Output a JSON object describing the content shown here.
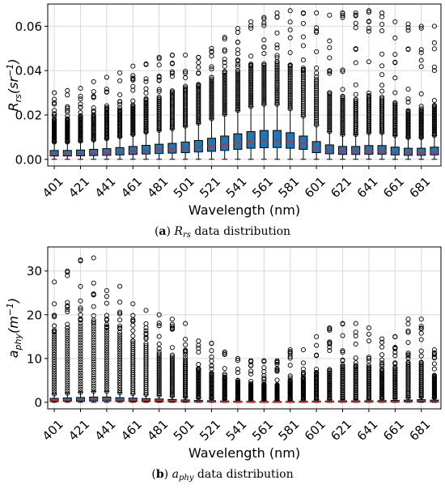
{
  "chart_data": [
    {
      "type": "box",
      "caption_tag": "(a)",
      "caption_var": "R",
      "caption_sub": "rs",
      "caption_text": "data distribution",
      "xlabel": "Wavelength (nm)",
      "ylabel_main": "R",
      "ylabel_sub": "rs",
      "ylabel_unit_open": "(sr",
      "ylabel_unit_sup": "−1",
      "ylabel_unit_close": ")",
      "ylim": [
        -0.003,
        0.07
      ],
      "yticks": [
        0.0,
        0.02,
        0.04,
        0.06
      ],
      "ytick_labels": [
        "0.00",
        "0.02",
        "0.04",
        "0.06"
      ],
      "grid": true,
      "box_color": "#1f77b4",
      "median_color": "#d62728",
      "x": [
        401,
        411,
        421,
        431,
        441,
        451,
        461,
        471,
        481,
        491,
        501,
        511,
        521,
        531,
        541,
        551,
        561,
        571,
        581,
        591,
        601,
        611,
        621,
        631,
        641,
        651,
        661,
        671,
        681,
        691
      ],
      "xtick_labels": [
        "401",
        "421",
        "441",
        "461",
        "481",
        "501",
        "521",
        "541",
        "561",
        "581",
        "601",
        "621",
        "641",
        "661",
        "681"
      ],
      "q1": [
        0.0015,
        0.0015,
        0.0016,
        0.0017,
        0.0018,
        0.002,
        0.0022,
        0.0024,
        0.0026,
        0.0028,
        0.003,
        0.0033,
        0.0036,
        0.004,
        0.0045,
        0.005,
        0.0052,
        0.0053,
        0.005,
        0.0045,
        0.003,
        0.0025,
        0.0022,
        0.0022,
        0.0023,
        0.0023,
        0.002,
        0.0018,
        0.0018,
        0.002
      ],
      "median": [
        0.0025,
        0.0025,
        0.0026,
        0.0028,
        0.003,
        0.0033,
        0.0036,
        0.004,
        0.0043,
        0.0046,
        0.005,
        0.0055,
        0.006,
        0.0068,
        0.0075,
        0.0082,
        0.0085,
        0.0085,
        0.008,
        0.0072,
        0.005,
        0.004,
        0.0036,
        0.0036,
        0.0038,
        0.0038,
        0.0033,
        0.003,
        0.003,
        0.0032
      ],
      "q3": [
        0.004,
        0.004,
        0.0042,
        0.0045,
        0.0048,
        0.0053,
        0.0058,
        0.0063,
        0.0068,
        0.0072,
        0.0078,
        0.0085,
        0.0095,
        0.0105,
        0.0115,
        0.0125,
        0.013,
        0.013,
        0.012,
        0.0105,
        0.008,
        0.0065,
        0.0058,
        0.0058,
        0.0062,
        0.0062,
        0.0055,
        0.005,
        0.005,
        0.0055
      ],
      "whisker_low": [
        0.0,
        0.0,
        0.0,
        0.0,
        0.0,
        0.0,
        0.0,
        0.0,
        0.0,
        0.0,
        0.0,
        0.0,
        0.0,
        0.0,
        0.0,
        0.0,
        0.0,
        0.0,
        0.0,
        0.0,
        0.0,
        0.0,
        0.0,
        0.0,
        0.0,
        0.0,
        0.0,
        0.0,
        0.0,
        0.0
      ],
      "whisker_high": [
        0.0078,
        0.0078,
        0.0082,
        0.0087,
        0.0093,
        0.0102,
        0.0112,
        0.0122,
        0.0131,
        0.0138,
        0.015,
        0.0163,
        0.0183,
        0.0203,
        0.022,
        0.0238,
        0.0248,
        0.0248,
        0.0228,
        0.0195,
        0.0155,
        0.0125,
        0.0112,
        0.0112,
        0.012,
        0.012,
        0.0108,
        0.0098,
        0.0098,
        0.0108
      ],
      "outlier_max": [
        0.03,
        0.031,
        0.032,
        0.035,
        0.037,
        0.039,
        0.042,
        0.043,
        0.046,
        0.047,
        0.047,
        0.046,
        0.05,
        0.055,
        0.059,
        0.062,
        0.064,
        0.066,
        0.067,
        0.066,
        0.066,
        0.065,
        0.066,
        0.066,
        0.067,
        0.066,
        0.062,
        0.061,
        0.06,
        0.06
      ],
      "outlier_sparse_from": [
        0.018,
        0.018,
        0.019,
        0.02,
        0.021,
        0.022,
        0.024,
        0.026,
        0.028,
        0.03,
        0.031,
        0.033,
        0.036,
        0.038,
        0.04,
        0.042,
        0.043,
        0.044,
        0.042,
        0.04,
        0.036,
        0.03,
        0.028,
        0.027,
        0.028,
        0.028,
        0.025,
        0.022,
        0.022,
        0.024
      ]
    },
    {
      "type": "box",
      "caption_tag": "(b)",
      "caption_var": "a",
      "caption_sub": "phy",
      "caption_text": "data distribution",
      "xlabel": "Wavelength (nm)",
      "ylabel_main": "a",
      "ylabel_sub": "phy",
      "ylabel_unit_open": "(m",
      "ylabel_unit_sup": "−1",
      "ylabel_unit_close": ")",
      "ylim": [
        -1.5,
        35.5
      ],
      "yticks": [
        0,
        10,
        20,
        30
      ],
      "ytick_labels": [
        "0",
        "10",
        "20",
        "30"
      ],
      "grid": true,
      "box_color": "#1f77b4",
      "median_color": "#d62728",
      "x": [
        401,
        411,
        421,
        431,
        441,
        451,
        461,
        471,
        481,
        491,
        501,
        511,
        521,
        531,
        541,
        551,
        561,
        571,
        581,
        591,
        601,
        611,
        621,
        631,
        641,
        651,
        661,
        671,
        681,
        691
      ],
      "xtick_labels": [
        "401",
        "421",
        "441",
        "461",
        "481",
        "501",
        "521",
        "541",
        "561",
        "581",
        "601",
        "621",
        "641",
        "661",
        "681"
      ],
      "q1": [
        0.2,
        0.25,
        0.25,
        0.3,
        0.3,
        0.25,
        0.2,
        0.2,
        0.15,
        0.15,
        0.12,
        0.1,
        0.08,
        0.06,
        0.05,
        0.05,
        0.04,
        0.04,
        0.04,
        0.05,
        0.05,
        0.06,
        0.06,
        0.06,
        0.06,
        0.07,
        0.08,
        0.1,
        0.12,
        0.1
      ],
      "median": [
        0.45,
        0.55,
        0.6,
        0.65,
        0.65,
        0.55,
        0.5,
        0.45,
        0.4,
        0.35,
        0.3,
        0.25,
        0.2,
        0.15,
        0.12,
        0.1,
        0.1,
        0.1,
        0.1,
        0.12,
        0.13,
        0.14,
        0.15,
        0.15,
        0.16,
        0.18,
        0.2,
        0.25,
        0.3,
        0.25
      ],
      "q3": [
        0.9,
        1.0,
        1.1,
        1.2,
        1.2,
        1.05,
        0.95,
        0.85,
        0.75,
        0.65,
        0.55,
        0.45,
        0.38,
        0.3,
        0.25,
        0.22,
        0.2,
        0.2,
        0.22,
        0.25,
        0.28,
        0.3,
        0.32,
        0.33,
        0.35,
        0.38,
        0.42,
        0.5,
        0.6,
        0.5
      ],
      "whisker_low": [
        0,
        0,
        0,
        0,
        0,
        0,
        0,
        0,
        0,
        0,
        0,
        0,
        0,
        0,
        0,
        0,
        0,
        0,
        0,
        0,
        0,
        0,
        0,
        0,
        0,
        0,
        0,
        0,
        0,
        0
      ],
      "whisker_high": [
        1.9,
        2.1,
        2.3,
        2.5,
        2.5,
        2.2,
        2.0,
        1.8,
        1.6,
        1.4,
        1.2,
        1.0,
        0.85,
        0.7,
        0.6,
        0.5,
        0.45,
        0.45,
        0.5,
        0.55,
        0.6,
        0.65,
        0.7,
        0.72,
        0.75,
        0.8,
        0.9,
        1.05,
        1.2,
        1.05
      ],
      "outlier_max": [
        27.5,
        30.0,
        32.5,
        33.0,
        25.5,
        26.5,
        22.5,
        21.0,
        20.0,
        19.0,
        18.0,
        14.0,
        13.5,
        11.5,
        10.0,
        9.5,
        9.5,
        9.5,
        12.0,
        12.0,
        15.0,
        17.0,
        18.0,
        18.0,
        17.0,
        14.5,
        15.0,
        19.0,
        19.0,
        12.0
      ],
      "outlier_sparse_from": [
        16.0,
        17.0,
        18.0,
        18.0,
        17.0,
        16.0,
        14.0,
        13.0,
        11.0,
        10.0,
        9.0,
        7.5,
        6.5,
        5.5,
        4.5,
        4.0,
        4.0,
        4.0,
        5.0,
        5.5,
        6.5,
        7.5,
        8.0,
        8.0,
        8.0,
        7.5,
        8.0,
        9.0,
        9.0,
        6.0
      ]
    }
  ]
}
